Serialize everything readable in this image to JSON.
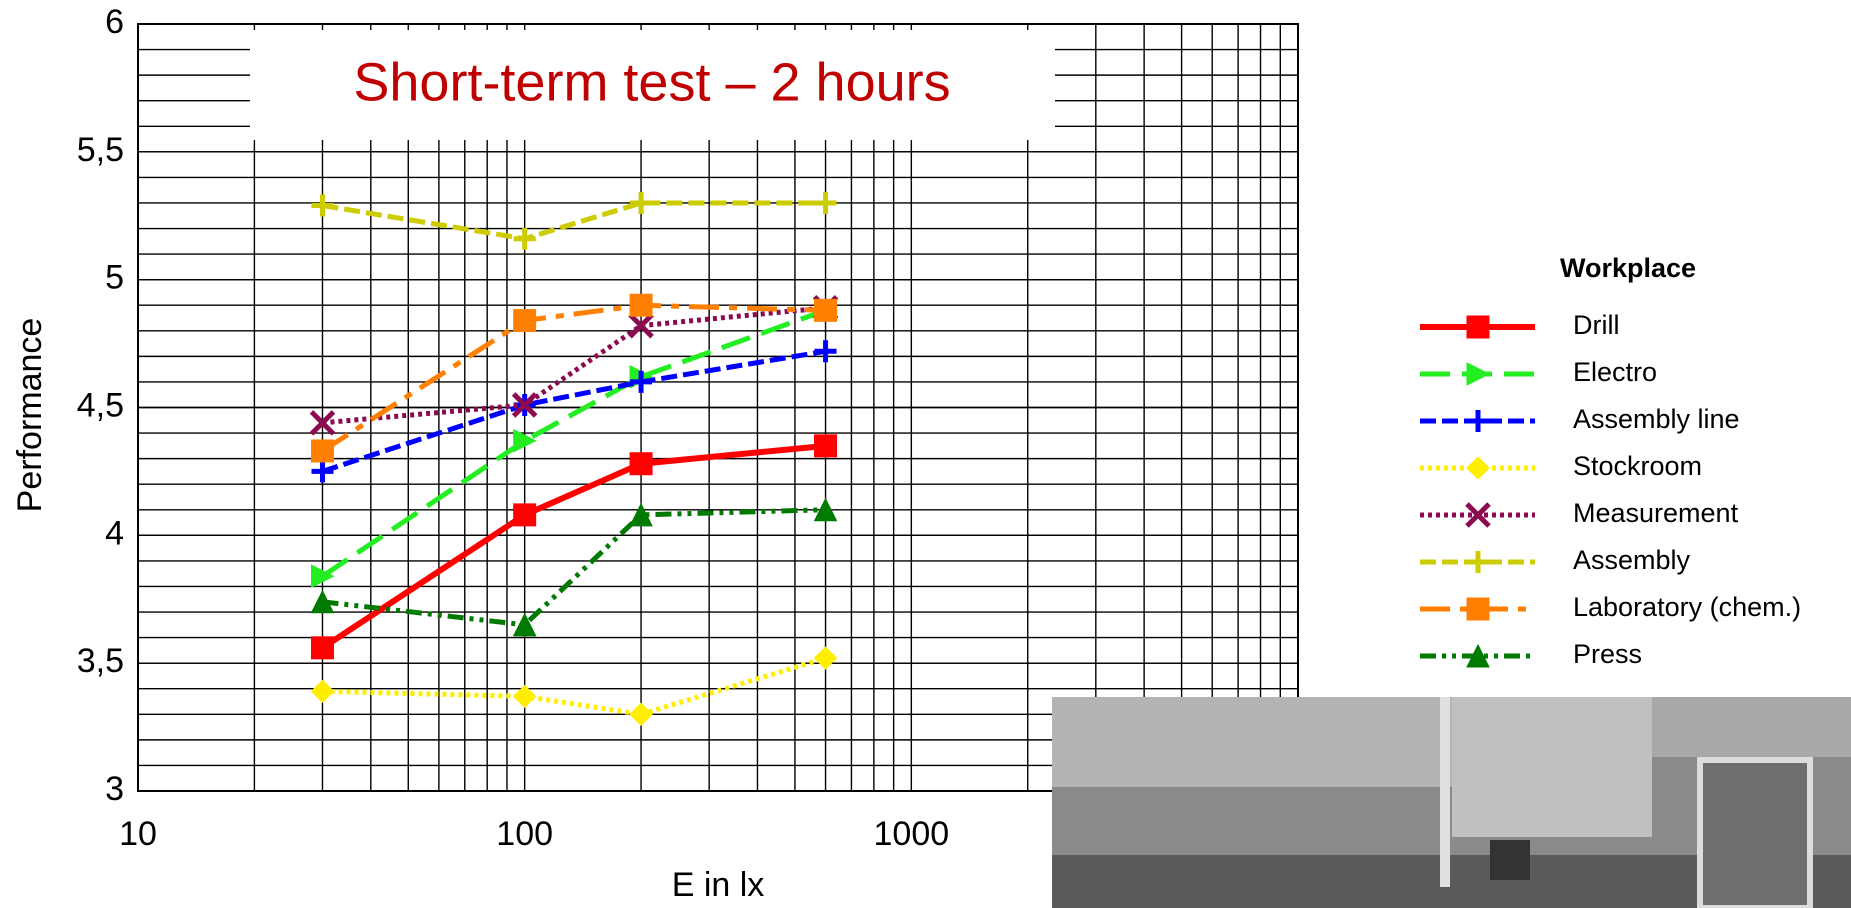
{
  "chart_data": {
    "type": "line",
    "title": "Short-term test – 2 hours",
    "x_label": "E in lx",
    "y_label": "Performance",
    "legend_title": "Workplace",
    "log_x": true,
    "grid": true,
    "minor_grid": true,
    "x": [
      30,
      100,
      200,
      600
    ],
    "xlim": [
      10,
      10000
    ],
    "xticks": [
      10,
      100,
      1000
    ],
    "ylim": [
      3,
      6
    ],
    "yticks": [
      3,
      {
        "value": 3.5,
        "label": "3,5"
      },
      4,
      {
        "value": 4.5,
        "label": "4,5"
      },
      5,
      {
        "value": 5.5,
        "label": "5,5"
      },
      6
    ],
    "series": [
      {
        "name": "Drill",
        "color": "#ff0000",
        "marker": "square",
        "dash": "solid",
        "values": [
          3.56,
          4.08,
          4.28,
          4.35
        ]
      },
      {
        "name": "Electro",
        "color": "#22ee22",
        "marker": "triangle-right",
        "dash": "long-dash",
        "values": [
          3.84,
          4.37,
          4.62,
          4.88
        ]
      },
      {
        "name": "Assembly line",
        "color": "#0000ff",
        "marker": "plus",
        "dash": "dash",
        "values": [
          4.25,
          4.51,
          4.6,
          4.72
        ]
      },
      {
        "name": "Stockroom",
        "color": "#ffee00",
        "marker": "diamond",
        "dash": "dot",
        "values": [
          3.39,
          3.37,
          3.3,
          3.52
        ]
      },
      {
        "name": "Measurement",
        "color": "#8b0a50",
        "marker": "cross",
        "dash": "dot",
        "values": [
          4.44,
          4.51,
          4.82,
          4.89
        ]
      },
      {
        "name": "Assembly",
        "color": "#cccc00",
        "marker": "plus",
        "dash": "dash",
        "values": [
          5.29,
          5.16,
          5.3,
          5.3
        ]
      },
      {
        "name": "Laboratory (chem.)",
        "color": "#ff8000",
        "marker": "square",
        "dash": "dash-dot",
        "values": [
          4.33,
          4.84,
          4.9,
          4.88
        ]
      },
      {
        "name": "Press",
        "color": "#007a00",
        "marker": "triangle",
        "dash": "dash-dot-dot",
        "values": [
          3.74,
          3.65,
          4.08,
          4.1
        ]
      }
    ]
  }
}
